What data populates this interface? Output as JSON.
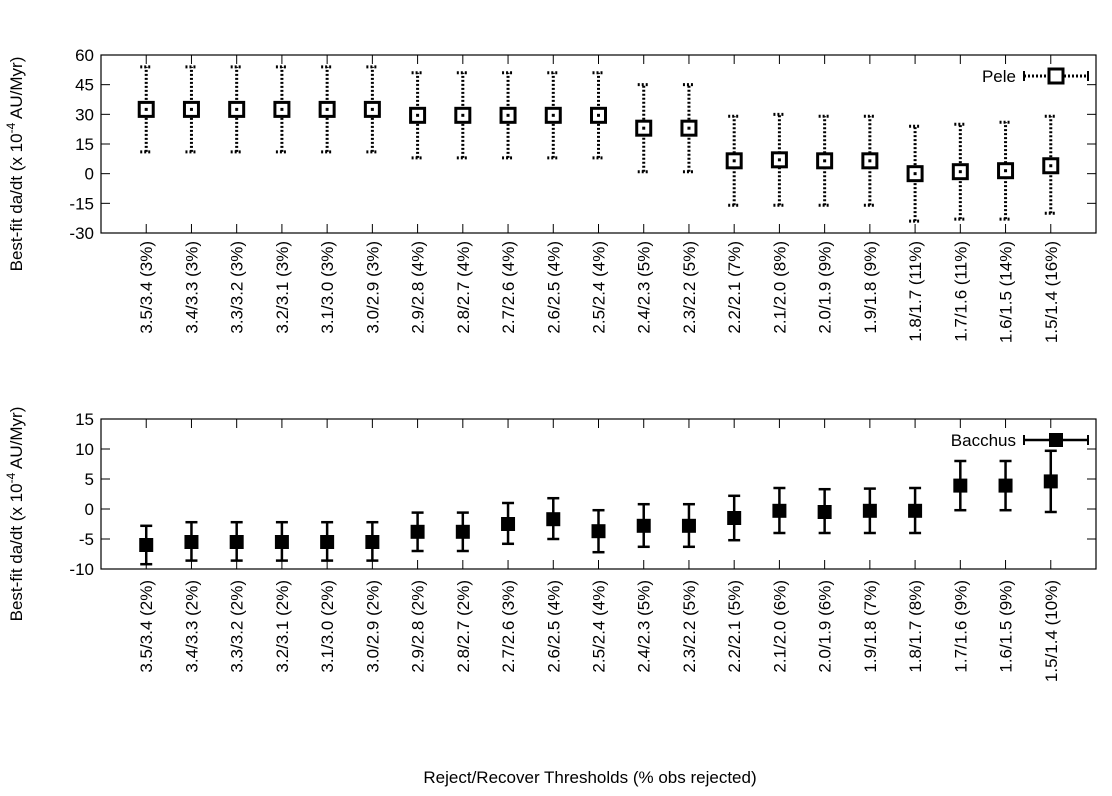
{
  "figure": {
    "xlabel": "Reject/Recover Thresholds (% obs rejected)"
  },
  "chart_data": [
    {
      "type": "scatter",
      "name": "top-panel",
      "ylabel": "Best-fit da/dt (x 10",
      "ylabel_exp": "-4",
      "ylabel_unit": " AU/Myr)",
      "ylim": [
        -30,
        60
      ],
      "yticks": [
        -30,
        -15,
        0,
        15,
        30,
        45,
        60
      ],
      "marker": "open-square",
      "errorbar_style": "dotted",
      "categories": [
        "3.5/3.4 (3%)",
        "3.4/3.3 (3%)",
        "3.3/3.2 (3%)",
        "3.2/3.1 (3%)",
        "3.1/3.0 (3%)",
        "3.0/2.9 (3%)",
        "2.9/2.8 (4%)",
        "2.8/2.7 (4%)",
        "2.7/2.6 (4%)",
        "2.6/2.5 (4%)",
        "2.5/2.4 (4%)",
        "2.4/2.3 (5%)",
        "2.3/2.2 (5%)",
        "2.2/2.1 (7%)",
        "2.1/2.0 (8%)",
        "2.0/1.9 (9%)",
        "1.9/1.8 (9%)",
        "1.8/1.7 (11%)",
        "1.7/1.6 (11%)",
        "1.6/1.5 (14%)",
        "1.5/1.4 (16%)"
      ],
      "series": [
        {
          "name": "Pele",
          "values": [
            32.5,
            32.5,
            32.5,
            32.5,
            32.5,
            32.5,
            29.5,
            29.5,
            29.5,
            29.5,
            29.5,
            23,
            23,
            6.5,
            7,
            6.5,
            6.5,
            0,
            1,
            1.5,
            4
          ],
          "err_low": [
            11,
            11,
            11,
            11,
            11,
            11,
            8,
            8,
            8,
            8,
            8,
            1,
            1,
            -16,
            -16,
            -16,
            -16,
            -24,
            -23,
            -23,
            -20
          ],
          "err_high": [
            54,
            54,
            54,
            54,
            54,
            54,
            51,
            51,
            51,
            51,
            51,
            45,
            45,
            29,
            30,
            29,
            29,
            24,
            25,
            26,
            29
          ]
        }
      ]
    },
    {
      "type": "scatter",
      "name": "bottom-panel",
      "ylabel": "Best-fit da/dt (x 10",
      "ylabel_exp": "-4",
      "ylabel_unit": " AU/Myr)",
      "ylim": [
        -10,
        15
      ],
      "yticks": [
        -10,
        -5,
        0,
        5,
        10,
        15
      ],
      "marker": "filled-square",
      "errorbar_style": "solid",
      "categories": [
        "3.5/3.4 (2%)",
        "3.4/3.3 (2%)",
        "3.3/3.2 (2%)",
        "3.2/3.1 (2%)",
        "3.1/3.0 (2%)",
        "3.0/2.9 (2%)",
        "2.9/2.8 (2%)",
        "2.8/2.7 (2%)",
        "2.7/2.6 (3%)",
        "2.6/2.5 (4%)",
        "2.5/2.4 (4%)",
        "2.4/2.3 (5%)",
        "2.3/2.2 (5%)",
        "2.2/2.1 (5%)",
        "2.1/2.0 (6%)",
        "2.0/1.9 (6%)",
        "1.9/1.8 (7%)",
        "1.8/1.7 (8%)",
        "1.7/1.6 (9%)",
        "1.6/1.5 (9%)",
        "1.5/1.4 (10%)"
      ],
      "series": [
        {
          "name": "Bacchus",
          "values": [
            -6,
            -5.5,
            -5.5,
            -5.5,
            -5.5,
            -5.5,
            -3.8,
            -3.8,
            -2.5,
            -1.7,
            -3.7,
            -2.8,
            -2.8,
            -1.5,
            -0.3,
            -0.5,
            -0.3,
            -0.3,
            3.9,
            3.9,
            4.6
          ],
          "err_low": [
            -9.2,
            -8.6,
            -8.6,
            -8.6,
            -8.6,
            -8.6,
            -7,
            -7,
            -5.8,
            -5,
            -7.2,
            -6.3,
            -6.3,
            -5.2,
            -4,
            -4,
            -4,
            -4,
            -0.2,
            -0.2,
            -0.5
          ],
          "err_high": [
            -2.8,
            -2.2,
            -2.2,
            -2.2,
            -2.2,
            -2.2,
            -0.6,
            -0.6,
            1,
            1.8,
            -0.2,
            0.8,
            0.8,
            2.2,
            3.5,
            3.3,
            3.4,
            3.5,
            8,
            8,
            9.7
          ]
        }
      ]
    }
  ]
}
